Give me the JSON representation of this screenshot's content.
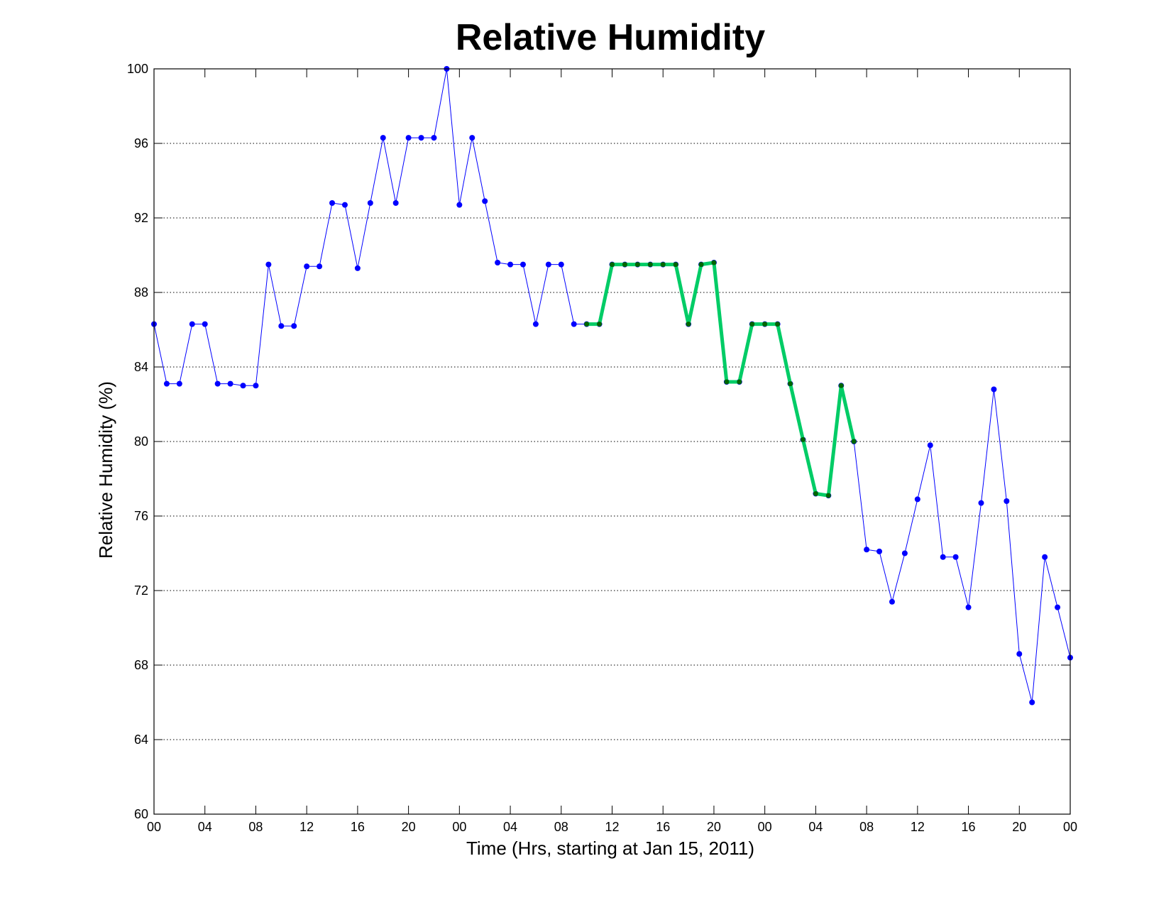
{
  "chart_data": {
    "type": "line",
    "title": "Relative Humidity",
    "xlabel": "Time (Hrs, starting at Jan 15, 2011)",
    "ylabel": "Relative Humidity (%)",
    "x_units": "hours",
    "xlim": [
      0,
      72
    ],
    "ylim": [
      60,
      100
    ],
    "yticks": [
      60,
      64,
      68,
      72,
      76,
      80,
      84,
      88,
      92,
      96,
      100
    ],
    "xticks": [
      {
        "x": 0,
        "label": "00"
      },
      {
        "x": 4,
        "label": "04"
      },
      {
        "x": 8,
        "label": "08"
      },
      {
        "x": 12,
        "label": "12"
      },
      {
        "x": 16,
        "label": "16"
      },
      {
        "x": 20,
        "label": "20"
      },
      {
        "x": 24,
        "label": "00"
      },
      {
        "x": 28,
        "label": "04"
      },
      {
        "x": 32,
        "label": "08"
      },
      {
        "x": 36,
        "label": "12"
      },
      {
        "x": 40,
        "label": "16"
      },
      {
        "x": 44,
        "label": "20"
      },
      {
        "x": 48,
        "label": "00"
      },
      {
        "x": 52,
        "label": "04"
      },
      {
        "x": 56,
        "label": "08"
      },
      {
        "x": 60,
        "label": "12"
      },
      {
        "x": 64,
        "label": "16"
      },
      {
        "x": 68,
        "label": "20"
      },
      {
        "x": 72,
        "label": "00"
      }
    ],
    "grid": "horizontal-dotted",
    "series": [
      {
        "color": "#0000ff",
        "style": "thin-line-dots",
        "x": [
          0,
          1,
          2,
          3,
          4,
          5,
          6,
          7,
          8,
          9,
          10,
          11,
          12,
          13,
          14,
          15,
          16,
          17,
          18,
          19,
          20,
          21,
          22,
          23,
          24,
          25,
          26,
          27,
          28,
          29,
          30,
          31,
          32,
          33,
          34,
          35,
          36,
          37,
          38,
          39,
          40,
          41,
          42,
          43,
          44,
          45,
          46,
          47,
          48,
          49,
          50,
          51,
          52,
          53,
          54,
          55,
          56,
          57,
          58,
          59,
          60,
          61,
          62,
          63,
          64,
          65,
          66,
          67,
          68,
          69,
          70,
          71,
          72
        ],
        "values": [
          86.3,
          83.1,
          83.1,
          86.3,
          86.3,
          83.1,
          83.1,
          83.0,
          83.0,
          89.5,
          86.2,
          86.2,
          89.4,
          89.4,
          92.8,
          92.7,
          89.3,
          92.8,
          96.3,
          92.8,
          96.3,
          96.3,
          96.3,
          100.0,
          92.7,
          96.3,
          92.9,
          89.6,
          89.5,
          89.5,
          86.3,
          89.5,
          89.5,
          86.3,
          86.3,
          86.3,
          89.5,
          89.5,
          89.5,
          89.5,
          89.5,
          89.5,
          86.3,
          89.5,
          89.6,
          83.2,
          83.2,
          86.3,
          86.3,
          86.3,
          83.1,
          80.1,
          77.2,
          77.1,
          83.0,
          80.0,
          74.2,
          74.1,
          71.4,
          74.0,
          76.9,
          79.8,
          73.8,
          73.8,
          71.1,
          76.7,
          82.8,
          76.8,
          68.6,
          66.0,
          73.8,
          71.1,
          68.4
        ]
      },
      {
        "color": "#00cc66",
        "marker_color": "#006600",
        "style": "thick-line-dots",
        "x": [
          34,
          35,
          36,
          37,
          38,
          39,
          40,
          41,
          42,
          43,
          44,
          45,
          46,
          47,
          48,
          49,
          50,
          51,
          52,
          53,
          54,
          55
        ],
        "values": [
          86.3,
          86.3,
          89.5,
          89.5,
          89.5,
          89.5,
          89.5,
          89.5,
          86.3,
          89.5,
          89.6,
          83.2,
          83.2,
          86.3,
          86.3,
          86.3,
          83.1,
          80.1,
          77.2,
          77.1,
          83.0,
          80.0
        ]
      }
    ]
  }
}
